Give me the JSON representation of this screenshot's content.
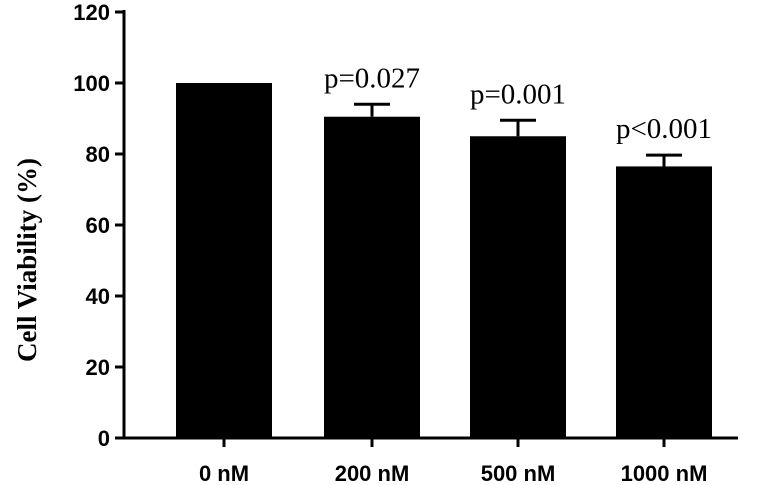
{
  "chart_data": {
    "type": "bar",
    "title": "",
    "xlabel": "",
    "ylabel": "Cell Viability (%)",
    "ylim": [
      0,
      120
    ],
    "yticks": [
      0,
      20,
      40,
      60,
      80,
      100,
      120
    ],
    "yticklabels": [
      "0",
      "20",
      "40",
      "60",
      "80",
      "100",
      "120"
    ],
    "categories": [
      "0 nM",
      "200 nM",
      "500 nM",
      "1000 nM"
    ],
    "values": [
      100,
      90.5,
      85,
      76.5
    ],
    "error_upper": [
      0,
      3.5,
      4.5,
      3.2
    ],
    "annotations": [
      "",
      "p=0.027",
      "p=0.001",
      "p<0.001"
    ],
    "grid": false,
    "bar_color": "#000000"
  }
}
